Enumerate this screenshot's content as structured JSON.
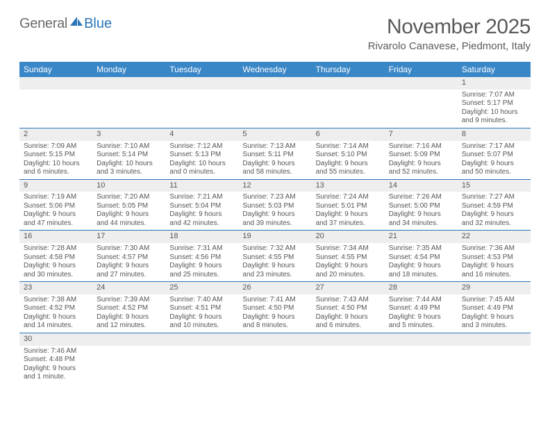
{
  "logo": {
    "text_general": "General",
    "text_blue": "Blue"
  },
  "header": {
    "title": "November 2025",
    "location": "Rivarolo Canavese, Piedmont, Italy"
  },
  "colors": {
    "header_bg": "#3a87c8",
    "header_text": "#ffffff",
    "daynum_bg": "#eeeeee",
    "week_divider": "#2a74b8",
    "text": "#555555"
  },
  "day_names": [
    "Sunday",
    "Monday",
    "Tuesday",
    "Wednesday",
    "Thursday",
    "Friday",
    "Saturday"
  ],
  "weeks": [
    [
      null,
      null,
      null,
      null,
      null,
      null,
      {
        "n": "1",
        "sunrise": "Sunrise: 7:07 AM",
        "sunset": "Sunset: 5:17 PM",
        "daylight": "Daylight: 10 hours and 9 minutes."
      }
    ],
    [
      {
        "n": "2",
        "sunrise": "Sunrise: 7:09 AM",
        "sunset": "Sunset: 5:15 PM",
        "daylight": "Daylight: 10 hours and 6 minutes."
      },
      {
        "n": "3",
        "sunrise": "Sunrise: 7:10 AM",
        "sunset": "Sunset: 5:14 PM",
        "daylight": "Daylight: 10 hours and 3 minutes."
      },
      {
        "n": "4",
        "sunrise": "Sunrise: 7:12 AM",
        "sunset": "Sunset: 5:13 PM",
        "daylight": "Daylight: 10 hours and 0 minutes."
      },
      {
        "n": "5",
        "sunrise": "Sunrise: 7:13 AM",
        "sunset": "Sunset: 5:11 PM",
        "daylight": "Daylight: 9 hours and 58 minutes."
      },
      {
        "n": "6",
        "sunrise": "Sunrise: 7:14 AM",
        "sunset": "Sunset: 5:10 PM",
        "daylight": "Daylight: 9 hours and 55 minutes."
      },
      {
        "n": "7",
        "sunrise": "Sunrise: 7:16 AM",
        "sunset": "Sunset: 5:09 PM",
        "daylight": "Daylight: 9 hours and 52 minutes."
      },
      {
        "n": "8",
        "sunrise": "Sunrise: 7:17 AM",
        "sunset": "Sunset: 5:07 PM",
        "daylight": "Daylight: 9 hours and 50 minutes."
      }
    ],
    [
      {
        "n": "9",
        "sunrise": "Sunrise: 7:19 AM",
        "sunset": "Sunset: 5:06 PM",
        "daylight": "Daylight: 9 hours and 47 minutes."
      },
      {
        "n": "10",
        "sunrise": "Sunrise: 7:20 AM",
        "sunset": "Sunset: 5:05 PM",
        "daylight": "Daylight: 9 hours and 44 minutes."
      },
      {
        "n": "11",
        "sunrise": "Sunrise: 7:21 AM",
        "sunset": "Sunset: 5:04 PM",
        "daylight": "Daylight: 9 hours and 42 minutes."
      },
      {
        "n": "12",
        "sunrise": "Sunrise: 7:23 AM",
        "sunset": "Sunset: 5:03 PM",
        "daylight": "Daylight: 9 hours and 39 minutes."
      },
      {
        "n": "13",
        "sunrise": "Sunrise: 7:24 AM",
        "sunset": "Sunset: 5:01 PM",
        "daylight": "Daylight: 9 hours and 37 minutes."
      },
      {
        "n": "14",
        "sunrise": "Sunrise: 7:26 AM",
        "sunset": "Sunset: 5:00 PM",
        "daylight": "Daylight: 9 hours and 34 minutes."
      },
      {
        "n": "15",
        "sunrise": "Sunrise: 7:27 AM",
        "sunset": "Sunset: 4:59 PM",
        "daylight": "Daylight: 9 hours and 32 minutes."
      }
    ],
    [
      {
        "n": "16",
        "sunrise": "Sunrise: 7:28 AM",
        "sunset": "Sunset: 4:58 PM",
        "daylight": "Daylight: 9 hours and 30 minutes."
      },
      {
        "n": "17",
        "sunrise": "Sunrise: 7:30 AM",
        "sunset": "Sunset: 4:57 PM",
        "daylight": "Daylight: 9 hours and 27 minutes."
      },
      {
        "n": "18",
        "sunrise": "Sunrise: 7:31 AM",
        "sunset": "Sunset: 4:56 PM",
        "daylight": "Daylight: 9 hours and 25 minutes."
      },
      {
        "n": "19",
        "sunrise": "Sunrise: 7:32 AM",
        "sunset": "Sunset: 4:55 PM",
        "daylight": "Daylight: 9 hours and 23 minutes."
      },
      {
        "n": "20",
        "sunrise": "Sunrise: 7:34 AM",
        "sunset": "Sunset: 4:55 PM",
        "daylight": "Daylight: 9 hours and 20 minutes."
      },
      {
        "n": "21",
        "sunrise": "Sunrise: 7:35 AM",
        "sunset": "Sunset: 4:54 PM",
        "daylight": "Daylight: 9 hours and 18 minutes."
      },
      {
        "n": "22",
        "sunrise": "Sunrise: 7:36 AM",
        "sunset": "Sunset: 4:53 PM",
        "daylight": "Daylight: 9 hours and 16 minutes."
      }
    ],
    [
      {
        "n": "23",
        "sunrise": "Sunrise: 7:38 AM",
        "sunset": "Sunset: 4:52 PM",
        "daylight": "Daylight: 9 hours and 14 minutes."
      },
      {
        "n": "24",
        "sunrise": "Sunrise: 7:39 AM",
        "sunset": "Sunset: 4:52 PM",
        "daylight": "Daylight: 9 hours and 12 minutes."
      },
      {
        "n": "25",
        "sunrise": "Sunrise: 7:40 AM",
        "sunset": "Sunset: 4:51 PM",
        "daylight": "Daylight: 9 hours and 10 minutes."
      },
      {
        "n": "26",
        "sunrise": "Sunrise: 7:41 AM",
        "sunset": "Sunset: 4:50 PM",
        "daylight": "Daylight: 9 hours and 8 minutes."
      },
      {
        "n": "27",
        "sunrise": "Sunrise: 7:43 AM",
        "sunset": "Sunset: 4:50 PM",
        "daylight": "Daylight: 9 hours and 6 minutes."
      },
      {
        "n": "28",
        "sunrise": "Sunrise: 7:44 AM",
        "sunset": "Sunset: 4:49 PM",
        "daylight": "Daylight: 9 hours and 5 minutes."
      },
      {
        "n": "29",
        "sunrise": "Sunrise: 7:45 AM",
        "sunset": "Sunset: 4:49 PM",
        "daylight": "Daylight: 9 hours and 3 minutes."
      }
    ],
    [
      {
        "n": "30",
        "sunrise": "Sunrise: 7:46 AM",
        "sunset": "Sunset: 4:48 PM",
        "daylight": "Daylight: 9 hours and 1 minute."
      },
      null,
      null,
      null,
      null,
      null,
      null
    ]
  ]
}
